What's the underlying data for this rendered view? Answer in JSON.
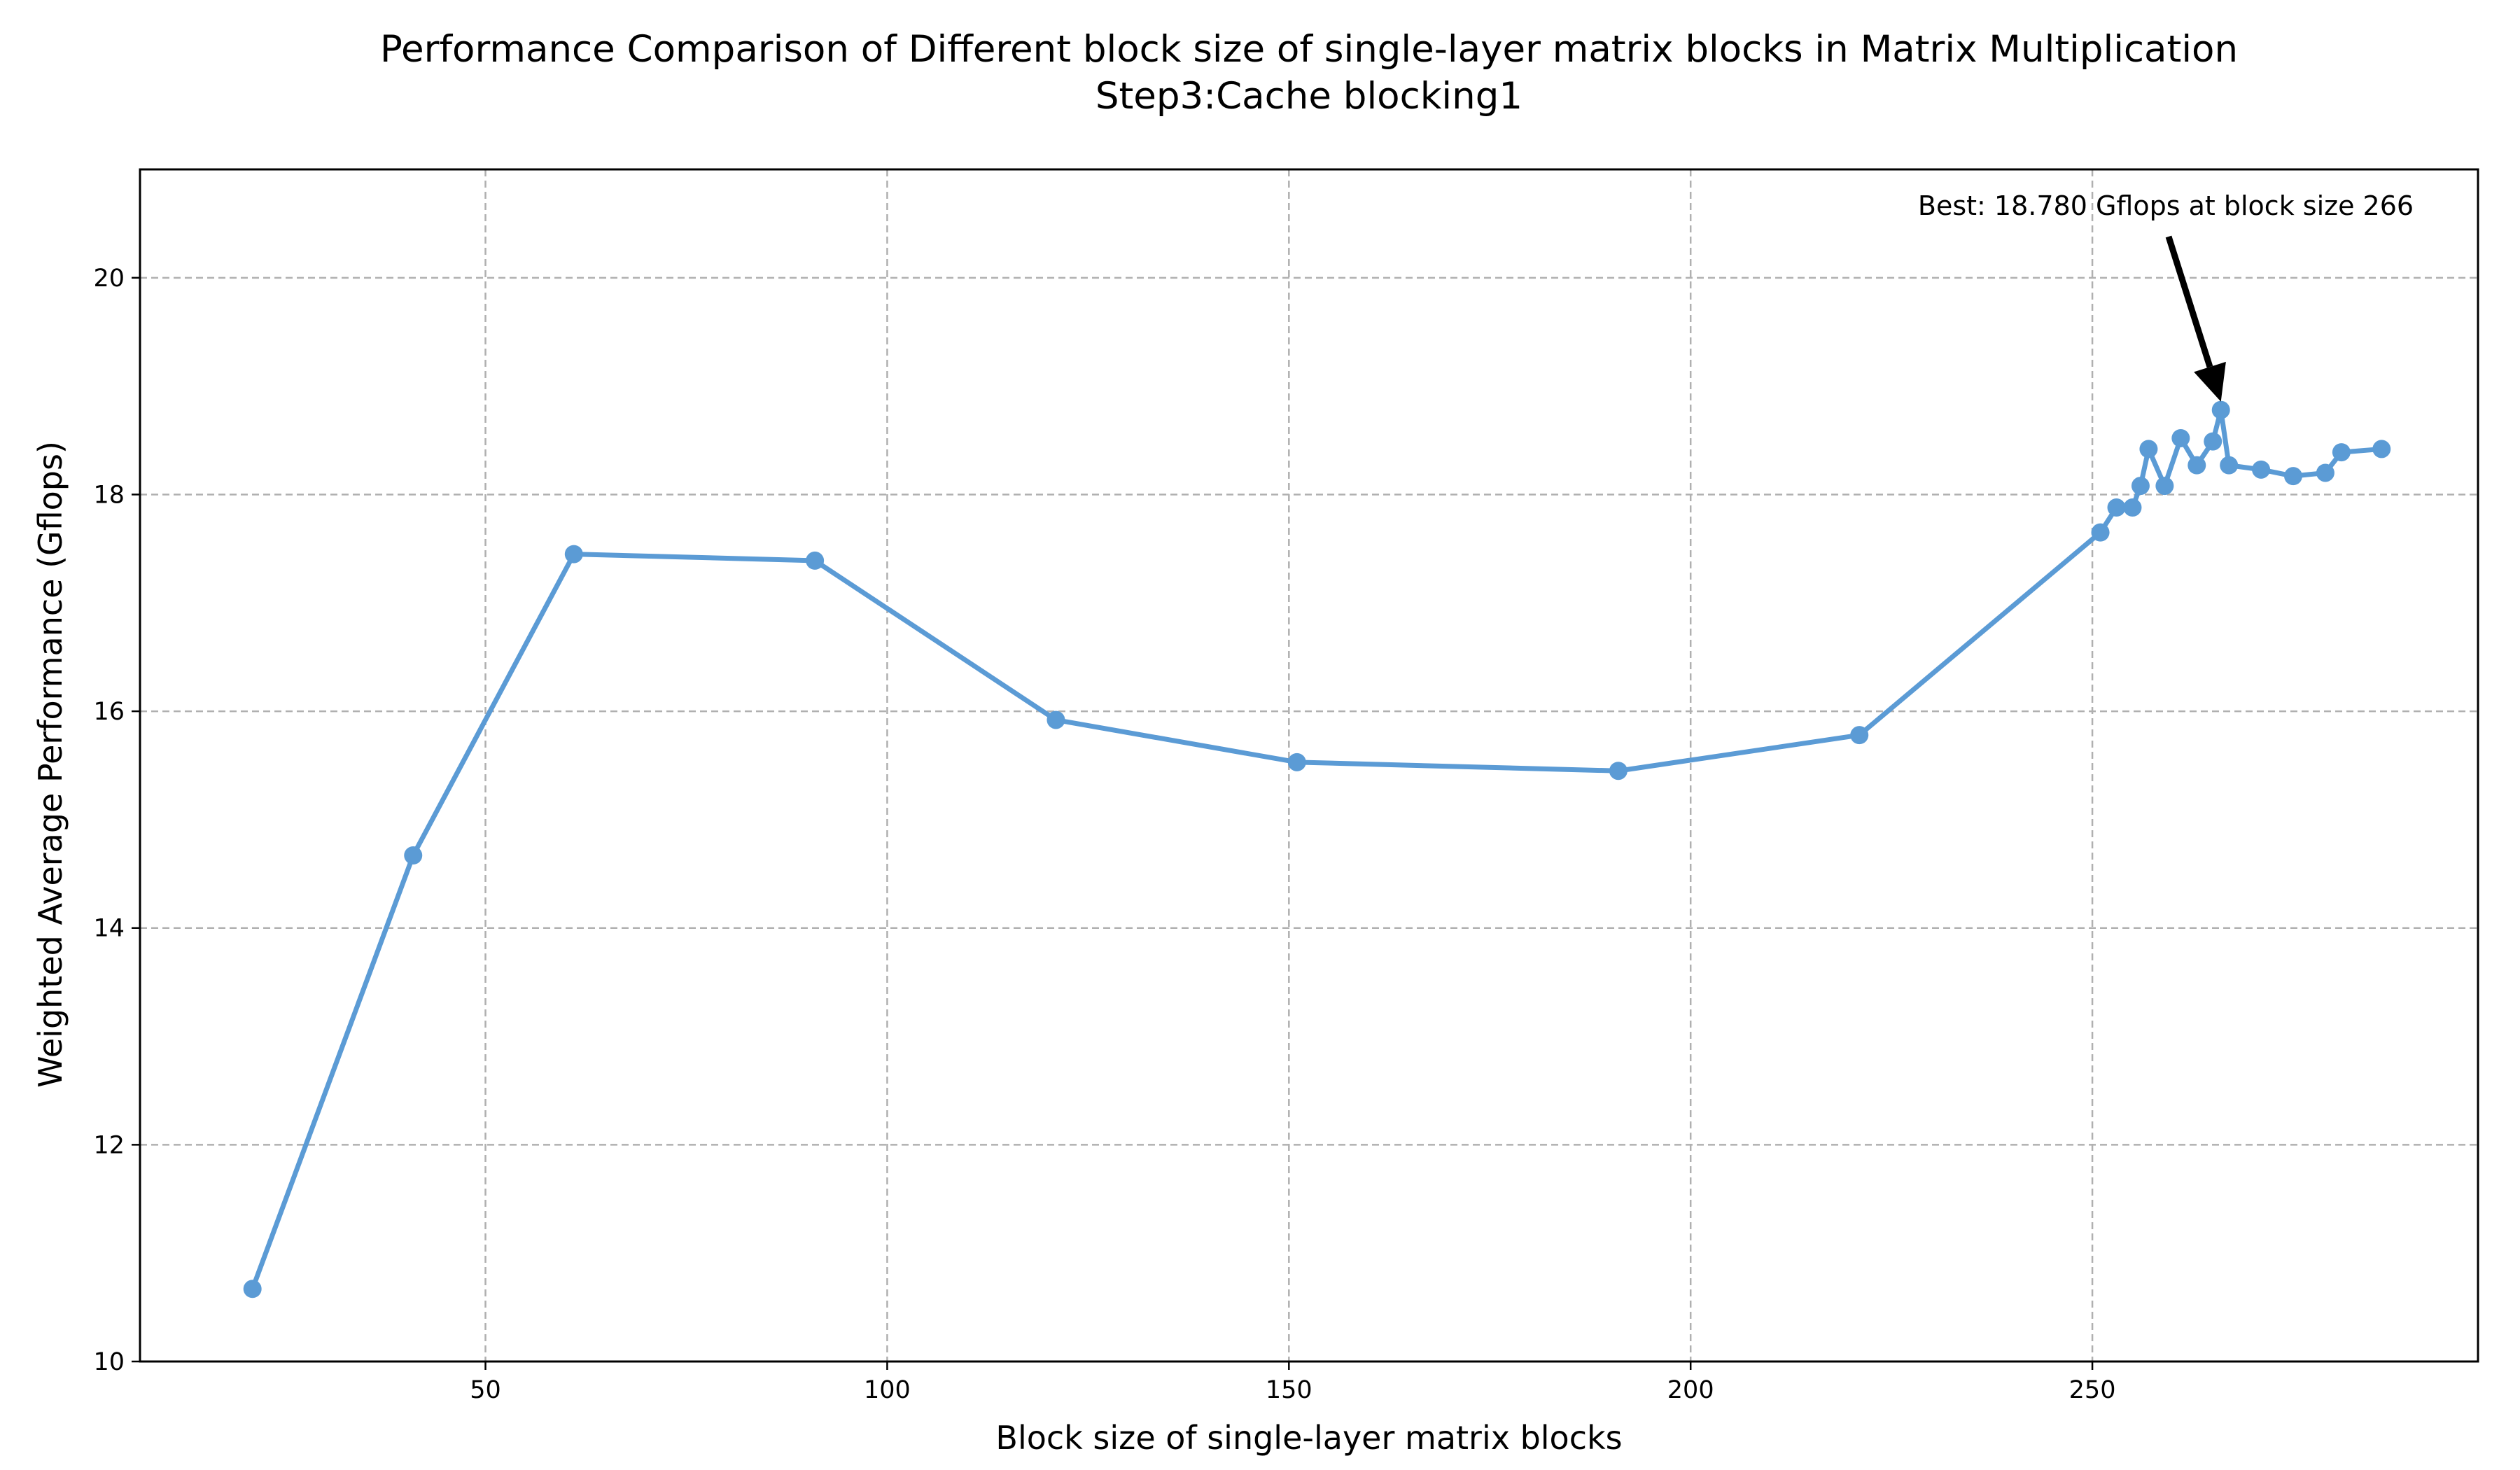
{
  "chart_data": {
    "type": "line",
    "title": "Performance Comparison of Different block size of single-layer matrix blocks in Matrix Multiplication",
    "subtitle": "Step3:Cache blocking1",
    "xlabel": "Block size of single-layer matrix blocks",
    "ylabel": "Weighted Average Performance (Gflops)",
    "xlim": [
      7,
      298
    ],
    "ylim": [
      10,
      21
    ],
    "xticks": [
      50,
      100,
      150,
      200,
      250
    ],
    "yticks": [
      10,
      12,
      14,
      16,
      18,
      20
    ],
    "grid": true,
    "colors": {
      "line": "#5b9bd5",
      "marker": "#5b9bd5",
      "annotation": "#000000"
    },
    "series": [
      {
        "x": [
          21,
          41,
          61,
          91,
          121,
          151,
          191,
          221,
          251,
          253,
          255,
          256,
          257,
          259,
          261,
          263,
          265,
          266,
          267,
          271,
          275,
          279,
          281,
          286
        ],
        "values": [
          10.67,
          14.67,
          17.45,
          17.39,
          15.92,
          15.53,
          15.45,
          15.78,
          17.65,
          17.88,
          17.88,
          18.08,
          18.42,
          18.08,
          18.52,
          18.27,
          18.49,
          18.78,
          18.27,
          18.23,
          18.17,
          18.2,
          18.39,
          18.42
        ]
      }
    ],
    "annotation": {
      "text": "Best: 18.780 Gflops at block size 266",
      "x": 266,
      "y": 18.78
    }
  }
}
